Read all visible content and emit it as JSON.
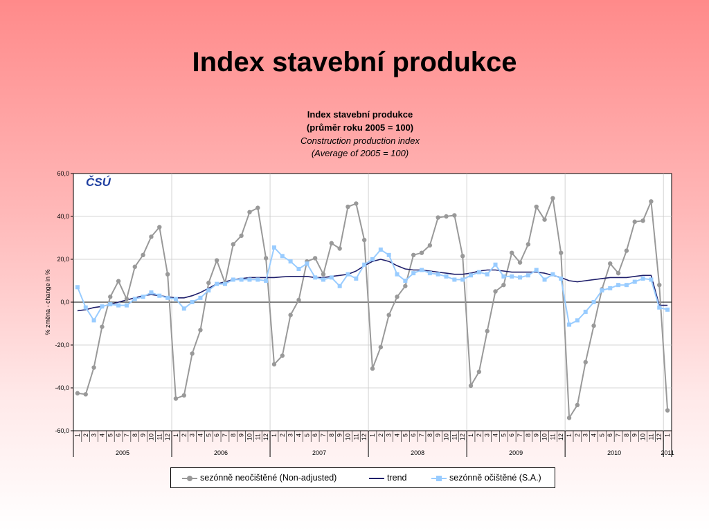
{
  "slide": {
    "title": "Index stavební produkce"
  },
  "chart_data": {
    "type": "line",
    "title": "Index stavební produkce",
    "subtitle": "(průměr roku 2005 = 100)",
    "title_en": "Construction production index",
    "subtitle_en": "(Average of 2005 = 100)",
    "ylabel": "% změna - change in %",
    "ylim": [
      -60,
      60
    ],
    "yticks": [
      60,
      40,
      20,
      0,
      -20,
      -40,
      -60
    ],
    "ytick_labels": [
      "60,0",
      "40,0",
      "20,0",
      "0,0",
      "-20,0",
      "-40,0",
      "-60,0"
    ],
    "grid": true,
    "legend_position": "bottom",
    "logo": "ČSÚ",
    "months": [
      "1",
      "2",
      "3",
      "4",
      "5",
      "6",
      "7",
      "8",
      "9",
      "10",
      "11",
      "12",
      "1",
      "2",
      "3",
      "4",
      "5",
      "6",
      "7",
      "8",
      "9",
      "10",
      "11",
      "12",
      "1",
      "2",
      "3",
      "4",
      "5",
      "6",
      "7",
      "8",
      "9",
      "10",
      "11",
      "12",
      "1",
      "2",
      "3",
      "4",
      "5",
      "6",
      "7",
      "8",
      "9",
      "10",
      "11",
      "12",
      "1",
      "2",
      "3",
      "4",
      "5",
      "6",
      "7",
      "8",
      "9",
      "10",
      "11",
      "12",
      "1",
      "2",
      "3",
      "4",
      "5",
      "6",
      "7",
      "8",
      "9",
      "10",
      "11",
      "12",
      "1"
    ],
    "years": [
      {
        "label": "2005",
        "months": 12
      },
      {
        "label": "2006",
        "months": 12
      },
      {
        "label": "2007",
        "months": 12
      },
      {
        "label": "2008",
        "months": 12
      },
      {
        "label": "2009",
        "months": 12
      },
      {
        "label": "2010",
        "months": 12
      },
      {
        "label": "2011",
        "months": 1
      }
    ],
    "series": [
      {
        "name": "sezónně neočištěné (Non-adjusted)",
        "color": "#999999",
        "marker": "circle",
        "values": [
          -42.5,
          -43,
          -30.5,
          -11.5,
          2.5,
          9.8,
          1.5,
          16.5,
          22,
          30.5,
          35,
          13,
          -45,
          -43.5,
          -24,
          -13,
          9,
          19.5,
          9,
          27,
          31,
          42,
          44,
          20.5,
          -29,
          -25,
          -6,
          1,
          19,
          20.5,
          13,
          27.5,
          25,
          44.5,
          46,
          29,
          -31,
          -21,
          -6,
          2.5,
          7.5,
          22,
          23,
          26.5,
          39.5,
          40,
          40.5,
          21.5,
          -39,
          -32.5,
          -13.5,
          5,
          8,
          23,
          18.5,
          27,
          44.5,
          38.5,
          48.5,
          23,
          -54,
          -48,
          -28,
          -11,
          6,
          18,
          13.5,
          24,
          37.5,
          38,
          47,
          8,
          -50.5
        ]
      },
      {
        "name": "trend",
        "color": "#1f1f6b",
        "marker": "none",
        "values": [
          -4,
          -3.5,
          -2.5,
          -2,
          -1,
          0,
          1,
          2,
          3,
          3.5,
          3,
          2.5,
          2,
          2,
          3,
          4.5,
          6.5,
          8.5,
          9.5,
          10.5,
          11,
          11.5,
          11.5,
          11.5,
          11.5,
          11.8,
          12,
          12,
          12,
          11.5,
          11.5,
          12,
          12.5,
          13,
          14.5,
          17,
          19,
          20,
          19,
          17,
          15.5,
          15,
          15,
          14.5,
          14,
          13.5,
          13,
          13,
          13.5,
          14.5,
          15,
          15,
          14.5,
          14,
          14,
          14,
          14,
          13.5,
          12.5,
          11.5,
          10,
          9.5,
          10,
          10.5,
          11,
          11.5,
          11.5,
          11.5,
          12,
          12.5,
          12.5,
          -1.5,
          -1.5
        ]
      },
      {
        "name": "sezónně očištěné (S.A.)",
        "color": "#99ccff",
        "marker": "square",
        "values": [
          7,
          -2.5,
          -8.5,
          -2,
          -1,
          -1.5,
          -1.5,
          1.5,
          2.5,
          4.5,
          3,
          2,
          1.5,
          -3,
          0,
          2,
          5.5,
          8.5,
          8.5,
          10.5,
          10.5,
          10.5,
          10.5,
          10,
          25.5,
          21.5,
          19,
          15.5,
          18,
          11.5,
          10.5,
          11.5,
          7.5,
          13,
          11,
          17.5,
          20,
          24.5,
          22,
          13,
          10,
          13.5,
          15,
          13.5,
          13,
          12,
          10.5,
          10.5,
          12.5,
          14,
          13,
          17.5,
          12,
          12,
          11.5,
          12.5,
          15,
          10.5,
          13,
          11,
          -10.5,
          -8.5,
          -4.5,
          0,
          5.5,
          6.5,
          8,
          8,
          9.5,
          11,
          10.5,
          -2.5,
          -3.5
        ]
      }
    ]
  },
  "legend": {
    "item1": "sezónně neočištěné (Non-adjusted)",
    "item2": "trend",
    "item3": "sezónně očištěné (S.A.)"
  }
}
